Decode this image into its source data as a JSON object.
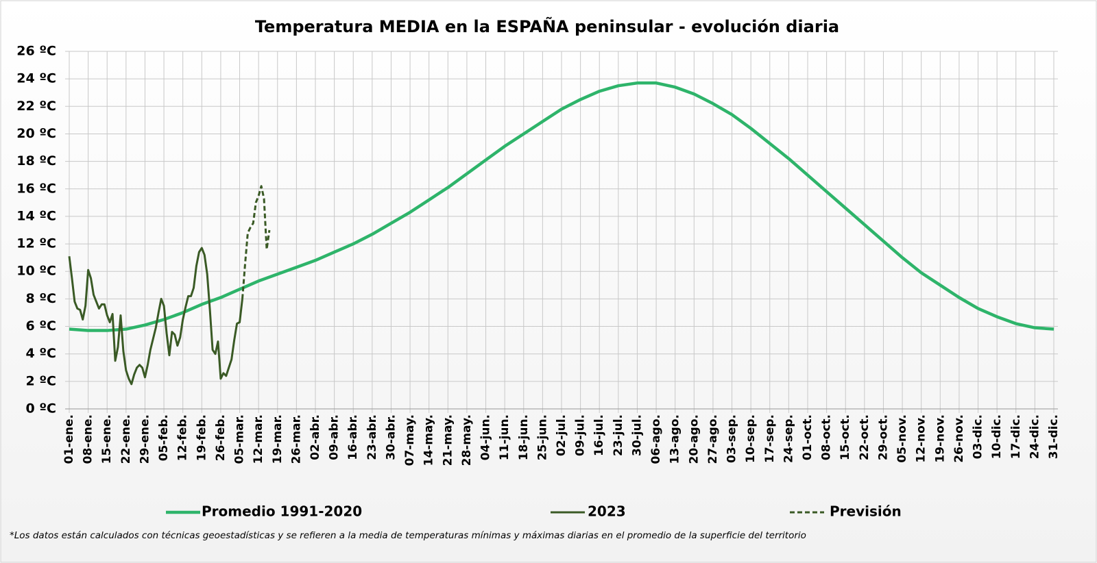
{
  "chart_data": {
    "type": "line",
    "title": "Temperatura MEDIA en la ESPAÑA peninsular - evolución diaria",
    "footnote": "*Los datos están calculados con técnicas geoestadísticas y se refieren a la media de temperaturas mínimas y máximas diarias en el promedio de la superficie del territorio",
    "xlim": [
      1,
      365
    ],
    "ylim": [
      0,
      26
    ],
    "grid": true,
    "legend": "bottom",
    "yticks": [
      {
        "value": 0,
        "label": "0 ºC"
      },
      {
        "value": 2,
        "label": "2 ºC"
      },
      {
        "value": 4,
        "label": "4 ºC"
      },
      {
        "value": 6,
        "label": "6 ºC"
      },
      {
        "value": 8,
        "label": "8 ºC"
      },
      {
        "value": 10,
        "label": "10 ºC"
      },
      {
        "value": 12,
        "label": "12 ºC"
      },
      {
        "value": 14,
        "label": "14 ºC"
      },
      {
        "value": 16,
        "label": "16 ºC"
      },
      {
        "value": 18,
        "label": "18 ºC"
      },
      {
        "value": 20,
        "label": "20 ºC"
      },
      {
        "value": 22,
        "label": "22 ºC"
      },
      {
        "value": 24,
        "label": "24 ºC"
      },
      {
        "value": 26,
        "label": "26 ºC"
      }
    ],
    "xticks": [
      {
        "value": 1,
        "label": "01-ene."
      },
      {
        "value": 8,
        "label": "08-ene."
      },
      {
        "value": 15,
        "label": "15-ene."
      },
      {
        "value": 22,
        "label": "22-ene."
      },
      {
        "value": 29,
        "label": "29-ene."
      },
      {
        "value": 36,
        "label": "05-feb."
      },
      {
        "value": 43,
        "label": "12-feb."
      },
      {
        "value": 50,
        "label": "19-feb."
      },
      {
        "value": 57,
        "label": "26-feb."
      },
      {
        "value": 64,
        "label": "05-mar."
      },
      {
        "value": 71,
        "label": "12-mar."
      },
      {
        "value": 78,
        "label": "19-mar."
      },
      {
        "value": 85,
        "label": "26-mar."
      },
      {
        "value": 92,
        "label": "02-abr."
      },
      {
        "value": 99,
        "label": "09-abr."
      },
      {
        "value": 106,
        "label": "16-abr."
      },
      {
        "value": 113,
        "label": "23-abr."
      },
      {
        "value": 120,
        "label": "30-abr."
      },
      {
        "value": 127,
        "label": "07-may."
      },
      {
        "value": 134,
        "label": "14-may."
      },
      {
        "value": 141,
        "label": "21-may."
      },
      {
        "value": 148,
        "label": "28-may."
      },
      {
        "value": 155,
        "label": "04-jun."
      },
      {
        "value": 162,
        "label": "11-jun."
      },
      {
        "value": 169,
        "label": "18-jun."
      },
      {
        "value": 176,
        "label": "25-jun."
      },
      {
        "value": 183,
        "label": "02-jul."
      },
      {
        "value": 190,
        "label": "09-jul."
      },
      {
        "value": 197,
        "label": "16-jul."
      },
      {
        "value": 204,
        "label": "23-jul."
      },
      {
        "value": 211,
        "label": "30-jul."
      },
      {
        "value": 218,
        "label": "06-ago."
      },
      {
        "value": 225,
        "label": "13-ago."
      },
      {
        "value": 232,
        "label": "20-ago."
      },
      {
        "value": 239,
        "label": "27-ago."
      },
      {
        "value": 246,
        "label": "03-sep."
      },
      {
        "value": 253,
        "label": "10-sep."
      },
      {
        "value": 260,
        "label": "17-sep."
      },
      {
        "value": 267,
        "label": "24-sep."
      },
      {
        "value": 274,
        "label": "01-oct."
      },
      {
        "value": 281,
        "label": "08-oct."
      },
      {
        "value": 288,
        "label": "15-oct."
      },
      {
        "value": 295,
        "label": "22-oct."
      },
      {
        "value": 302,
        "label": "29-oct."
      },
      {
        "value": 309,
        "label": "05-nov."
      },
      {
        "value": 316,
        "label": "12-nov."
      },
      {
        "value": 323,
        "label": "19-nov."
      },
      {
        "value": 330,
        "label": "26-nov."
      },
      {
        "value": 337,
        "label": "03-dic."
      },
      {
        "value": 344,
        "label": "10-dic."
      },
      {
        "value": 351,
        "label": "17-dic."
      },
      {
        "value": 358,
        "label": "24-dic."
      },
      {
        "value": 365,
        "label": "31-dic."
      }
    ],
    "series": [
      {
        "name": "Promedio 1991-2020",
        "color": "#2eb46a",
        "dashed": false,
        "x": [
          1,
          8,
          15,
          22,
          29,
          36,
          43,
          50,
          57,
          64,
          71,
          78,
          85,
          92,
          99,
          106,
          113,
          120,
          127,
          134,
          141,
          148,
          155,
          162,
          169,
          176,
          183,
          190,
          197,
          204,
          211,
          218,
          225,
          232,
          239,
          246,
          253,
          260,
          267,
          274,
          281,
          288,
          295,
          302,
          309,
          316,
          323,
          330,
          337,
          344,
          351,
          358,
          365
        ],
        "values": [
          5.8,
          5.7,
          5.7,
          5.8,
          6.1,
          6.5,
          7.0,
          7.6,
          8.1,
          8.7,
          9.3,
          9.8,
          10.3,
          10.8,
          11.4,
          12.0,
          12.7,
          13.5,
          14.3,
          15.2,
          16.1,
          17.1,
          18.1,
          19.1,
          20.0,
          20.9,
          21.8,
          22.5,
          23.1,
          23.5,
          23.7,
          23.7,
          23.4,
          22.9,
          22.2,
          21.4,
          20.4,
          19.3,
          18.2,
          17.0,
          15.8,
          14.6,
          13.4,
          12.2,
          11.0,
          9.9,
          9.0,
          8.1,
          7.3,
          6.7,
          6.2,
          5.9,
          5.8
        ]
      },
      {
        "name": "2023",
        "color": "#3a5a25",
        "dashed": false,
        "x": [
          1,
          2,
          3,
          4,
          5,
          6,
          7,
          8,
          9,
          10,
          11,
          12,
          13,
          14,
          15,
          16,
          17,
          18,
          19,
          20,
          21,
          22,
          23,
          24,
          25,
          26,
          27,
          28,
          29,
          30,
          31,
          32,
          33,
          34,
          35,
          36,
          37,
          38,
          39,
          40,
          41,
          42,
          43,
          44,
          45,
          46,
          47,
          48,
          49,
          50,
          51,
          52,
          53,
          54,
          55,
          56,
          57,
          58,
          59,
          60,
          61,
          62,
          63,
          64,
          65
        ],
        "values": [
          11.1,
          9.5,
          7.8,
          7.3,
          7.2,
          6.5,
          7.5,
          10.1,
          9.5,
          8.3,
          7.8,
          7.3,
          7.6,
          7.6,
          6.8,
          6.3,
          6.9,
          3.5,
          4.5,
          6.8,
          4.2,
          2.8,
          2.2,
          1.8,
          2.5,
          3.0,
          3.2,
          3.0,
          2.3,
          3.2,
          4.3,
          5.1,
          5.9,
          7.0,
          8.0,
          7.5,
          5.5,
          3.9,
          5.6,
          5.4,
          4.6,
          5.2,
          6.5,
          7.4,
          8.2,
          8.2,
          8.8,
          10.4,
          11.4,
          11.7,
          11.2,
          9.8,
          7.2,
          4.3,
          4.0,
          4.9,
          2.2,
          2.6,
          2.4,
          3.0,
          3.6,
          5.0,
          6.2,
          6.3,
          8.0
        ]
      },
      {
        "name": "Previsión",
        "color": "#3a5a25",
        "dashed": true,
        "x": [
          65,
          66,
          67,
          68,
          69,
          70,
          71,
          72,
          73,
          74,
          75
        ],
        "values": [
          8.0,
          10.5,
          12.8,
          13.2,
          13.5,
          15.0,
          15.5,
          16.2,
          15.3,
          11.6,
          13.0
        ]
      }
    ]
  }
}
